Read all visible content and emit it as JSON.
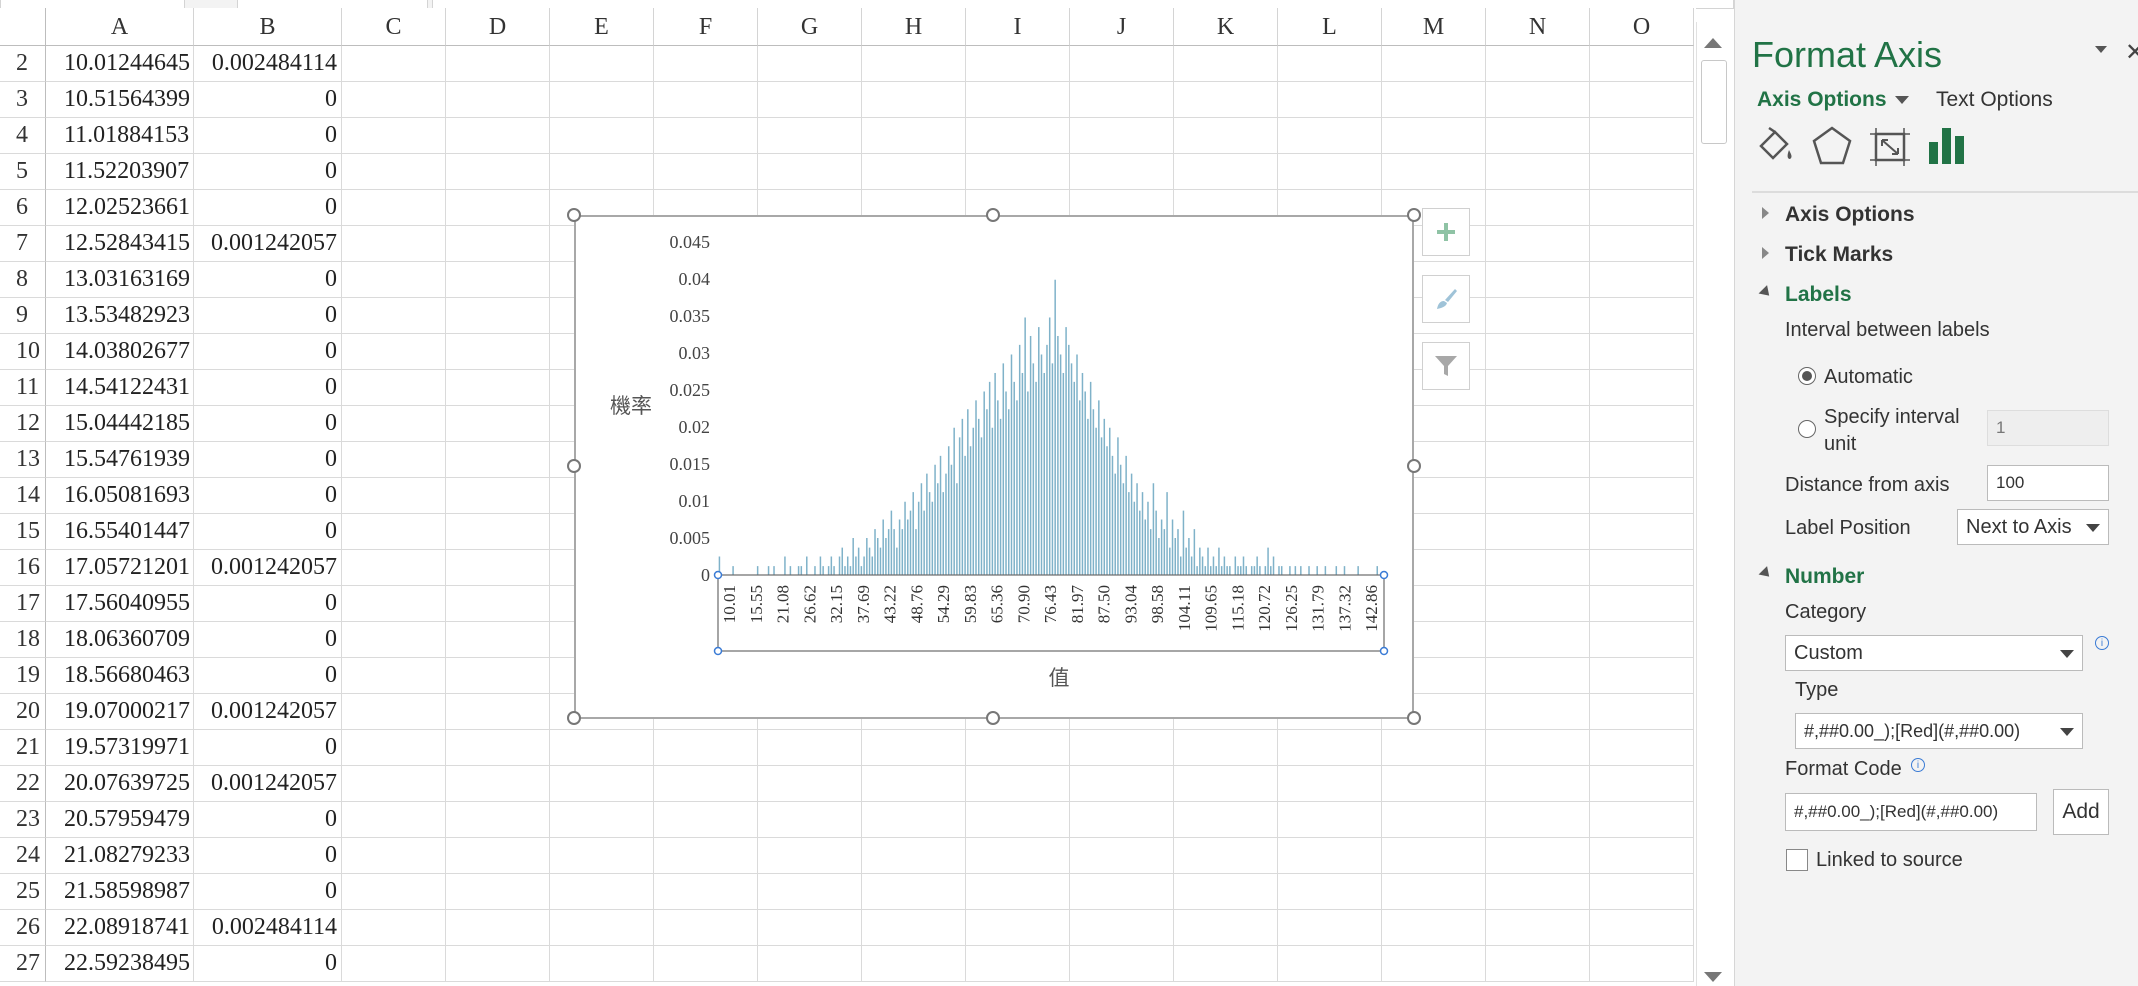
{
  "sheet": {
    "columns": [
      "A",
      "B",
      "C",
      "D",
      "E",
      "F",
      "G",
      "H",
      "I",
      "J",
      "K",
      "L",
      "M",
      "N",
      "O"
    ],
    "rows": [
      {
        "row": "2",
        "a": "10.01244645",
        "b": "0.002484114"
      },
      {
        "row": "3",
        "a": "10.51564399",
        "b": "0"
      },
      {
        "row": "4",
        "a": "11.01884153",
        "b": "0"
      },
      {
        "row": "5",
        "a": "11.52203907",
        "b": "0"
      },
      {
        "row": "6",
        "a": "12.02523661",
        "b": "0"
      },
      {
        "row": "7",
        "a": "12.52843415",
        "b": "0.001242057"
      },
      {
        "row": "8",
        "a": "13.03163169",
        "b": "0"
      },
      {
        "row": "9",
        "a": "13.53482923",
        "b": "0"
      },
      {
        "row": "10",
        "a": "14.03802677",
        "b": "0"
      },
      {
        "row": "11",
        "a": "14.54122431",
        "b": "0"
      },
      {
        "row": "12",
        "a": "15.04442185",
        "b": "0"
      },
      {
        "row": "13",
        "a": "15.54761939",
        "b": "0"
      },
      {
        "row": "14",
        "a": "16.05081693",
        "b": "0"
      },
      {
        "row": "15",
        "a": "16.55401447",
        "b": "0"
      },
      {
        "row": "16",
        "a": "17.05721201",
        "b": "0.001242057"
      },
      {
        "row": "17",
        "a": "17.56040955",
        "b": "0"
      },
      {
        "row": "18",
        "a": "18.06360709",
        "b": "0"
      },
      {
        "row": "19",
        "a": "18.56680463",
        "b": "0"
      },
      {
        "row": "20",
        "a": "19.07000217",
        "b": "0.001242057"
      },
      {
        "row": "21",
        "a": "19.57319971",
        "b": "0"
      },
      {
        "row": "22",
        "a": "20.07639725",
        "b": "0.001242057"
      },
      {
        "row": "23",
        "a": "20.57959479",
        "b": "0"
      },
      {
        "row": "24",
        "a": "21.08279233",
        "b": "0"
      },
      {
        "row": "25",
        "a": "21.58598987",
        "b": "0"
      },
      {
        "row": "26",
        "a": "22.08918741",
        "b": "0.002484114"
      },
      {
        "row": "27",
        "a": "22.59238495",
        "b": "0"
      }
    ]
  },
  "chart_data": {
    "type": "bar",
    "ylabel": "機率",
    "xlabel": "值",
    "ylim": [
      0,
      0.045
    ],
    "yticks": [
      "0.045",
      "0.04",
      "0.035",
      "0.03",
      "0.025",
      "0.02",
      "0.015",
      "0.01",
      "0.005",
      "0"
    ],
    "xtick_labels": [
      "10.01",
      "15.55",
      "21.08",
      "26.62",
      "32.15",
      "37.69",
      "43.22",
      "48.76",
      "54.29",
      "59.83",
      "65.36",
      "70.90",
      "76.43",
      "81.97",
      "87.50",
      "93.04",
      "98.58",
      "104.11",
      "109.65",
      "115.18",
      "120.72",
      "126.25",
      "131.79",
      "137.32",
      "142.86"
    ],
    "x_start": 10.01244645,
    "x_step": 0.50319754,
    "values": [
      0.0025,
      0,
      0,
      0,
      0,
      0.0012,
      0,
      0,
      0,
      0,
      0,
      0,
      0,
      0,
      0.0012,
      0,
      0,
      0,
      0.0012,
      0,
      0.0012,
      0,
      0,
      0,
      0.0025,
      0,
      0.0012,
      0,
      0,
      0.0012,
      0.0012,
      0,
      0.0025,
      0,
      0,
      0.0012,
      0,
      0.0025,
      0.0012,
      0,
      0.0012,
      0.0025,
      0.0012,
      0,
      0.0025,
      0.0037,
      0.0012,
      0.0025,
      0.0012,
      0.005,
      0.0025,
      0.0037,
      0.0012,
      0.0025,
      0.005,
      0.0037,
      0.0025,
      0.0062,
      0.005,
      0.0037,
      0.0075,
      0.005,
      0.0062,
      0.0087,
      0.0062,
      0.0037,
      0.0075,
      0.0062,
      0.0099,
      0.0075,
      0.0087,
      0.0112,
      0.0062,
      0.0099,
      0.0124,
      0.0087,
      0.0137,
      0.0112,
      0.0099,
      0.0149,
      0.0124,
      0.0161,
      0.0112,
      0.0137,
      0.0174,
      0.0149,
      0.0199,
      0.0124,
      0.0186,
      0.0211,
      0.0161,
      0.0224,
      0.0174,
      0.0199,
      0.0236,
      0.0211,
      0.0186,
      0.0248,
      0.0224,
      0.0261,
      0.0199,
      0.0273,
      0.0236,
      0.0211,
      0.0286,
      0.0248,
      0.0224,
      0.0298,
      0.0261,
      0.0236,
      0.0311,
      0.0273,
      0.0348,
      0.0248,
      0.0323,
      0.0286,
      0.0261,
      0.0335,
      0.0298,
      0.0273,
      0.0311,
      0.0348,
      0.0286,
      0.0399,
      0.0323,
      0.0298,
      0.0273,
      0.0335,
      0.0311,
      0.0286,
      0.0261,
      0.0298,
      0.0236,
      0.0273,
      0.0248,
      0.0211,
      0.0261,
      0.0224,
      0.0199,
      0.0236,
      0.0186,
      0.0211,
      0.0174,
      0.0199,
      0.0161,
      0.0137,
      0.0186,
      0.0149,
      0.0124,
      0.0161,
      0.0112,
      0.0137,
      0.0099,
      0.0124,
      0.0087,
      0.0112,
      0.0075,
      0.0099,
      0.0062,
      0.0124,
      0.0087,
      0.005,
      0.0075,
      0.0062,
      0.0112,
      0.0037,
      0.0075,
      0.005,
      0.0062,
      0.0025,
      0.0087,
      0.0037,
      0.005,
      0.0025,
      0.0062,
      0.0012,
      0.0037,
      0.0025,
      0.0012,
      0.0037,
      0.0012,
      0.0025,
      0.0012,
      0.0037,
      0.0012,
      0.0025,
      0.0012,
      0.0012,
      0,
      0.0025,
      0.0012,
      0.0012,
      0.0025,
      0.0012,
      0,
      0.0012,
      0.0012,
      0.0025,
      0.0012,
      0,
      0.0012,
      0.0037,
      0.0012,
      0.0025,
      0,
      0.0012,
      0.0012,
      0,
      0,
      0.0012,
      0,
      0.0012,
      0,
      0.0012,
      0,
      0,
      0.0012,
      0,
      0,
      0.0012,
      0,
      0,
      0.0012,
      0,
      0,
      0,
      0.0012,
      0,
      0,
      0.0012,
      0,
      0,
      0,
      0,
      0.0012,
      0,
      0,
      0,
      0,
      0,
      0,
      0.0012,
      0,
      0
    ],
    "bar_color": "#7fb2c9"
  },
  "pane": {
    "title": "Format Axis",
    "tab_axis_options": "Axis Options",
    "tab_text_options": "Text Options",
    "sections": {
      "axis_options": "Axis Options",
      "tick_marks": "Tick Marks",
      "labels": "Labels",
      "number": "Number"
    },
    "labels": {
      "interval_title": "Interval between labels",
      "automatic": "Automatic",
      "specify_interval_1": "Specify interval",
      "specify_interval_2": "unit",
      "specify_value": "1",
      "distance_label": "Distance from axis",
      "distance_value": "100",
      "position_label": "Label Position",
      "position_value": "Next to Axis"
    },
    "number": {
      "category_label": "Category",
      "category_value": "Custom",
      "type_label": "Type",
      "type_value": "#,##0.00_);[Red](#,##0.00)",
      "format_code_label": "Format Code",
      "format_code_value": "#,##0.00_);[Red](#,##0.00)",
      "add_button": "Add",
      "linked_label": "Linked to source"
    },
    "info_glyph": "i",
    "colors": {
      "accent": "#217346",
      "background": "#f3f3f3"
    }
  }
}
